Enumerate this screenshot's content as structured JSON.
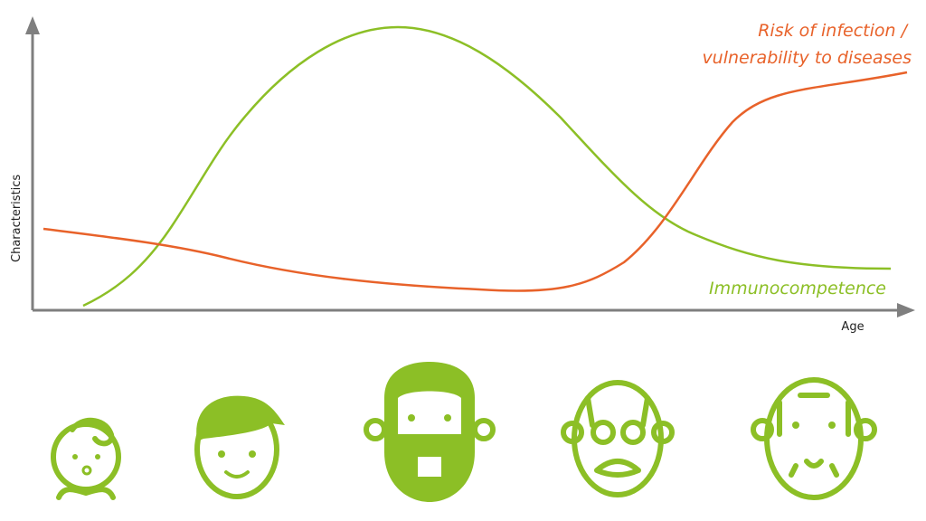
{
  "labels": {
    "risk_line1": "Risk of infection /",
    "risk_line2": "vulnerability to diseases",
    "immuno": "Immunocompetence"
  },
  "axes": {
    "y_label": "Characteristics",
    "x_label": "Age"
  }
}
